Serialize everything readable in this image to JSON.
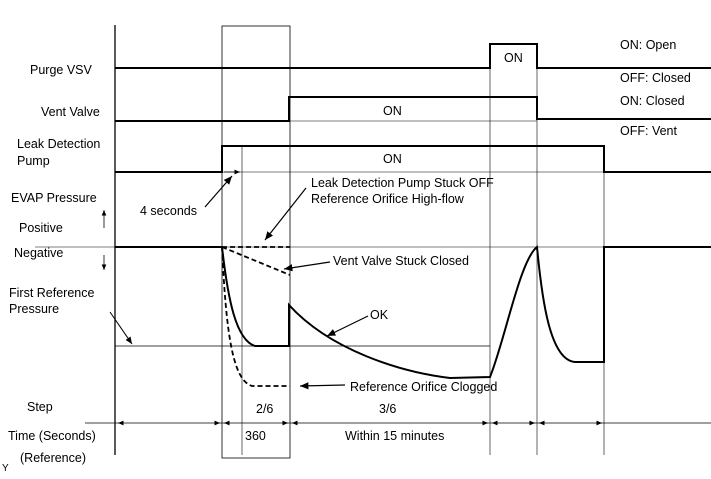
{
  "rows": {
    "purge_vsv": "Purge VSV",
    "vent_valve": "Vent Valve",
    "pump_line1": "Leak Detection",
    "pump_line2": "Pump",
    "evap": "EVAP Pressure",
    "positive": "Positive",
    "negative": "Negative",
    "first_ref_line1": "First Reference",
    "first_ref_line2": "Pressure",
    "step": "Step",
    "time": "Time (Seconds)",
    "reference": "(Reference)"
  },
  "state_labels": {
    "on_open": "ON: Open",
    "off_closed": "OFF: Closed",
    "on_closed": "ON: Closed",
    "off_vent": "OFF: Vent",
    "purge_on": "ON",
    "vent_on": "ON",
    "pump_on": "ON"
  },
  "annotations": {
    "four_seconds": "4 seconds",
    "stuck_off_line1": "Leak Detection Pump Stuck OFF",
    "stuck_off_line2": "Reference Orifice High-flow",
    "vent_stuck": "Vent Valve Stuck Closed",
    "ok": "OK",
    "clogged": "Reference Orifice Clogged"
  },
  "steps": {
    "step2": "2/6",
    "step3": "3/6"
  },
  "times": {
    "step2": "360",
    "step3": "Within 15 minutes"
  },
  "corner_mark": "Y"
}
